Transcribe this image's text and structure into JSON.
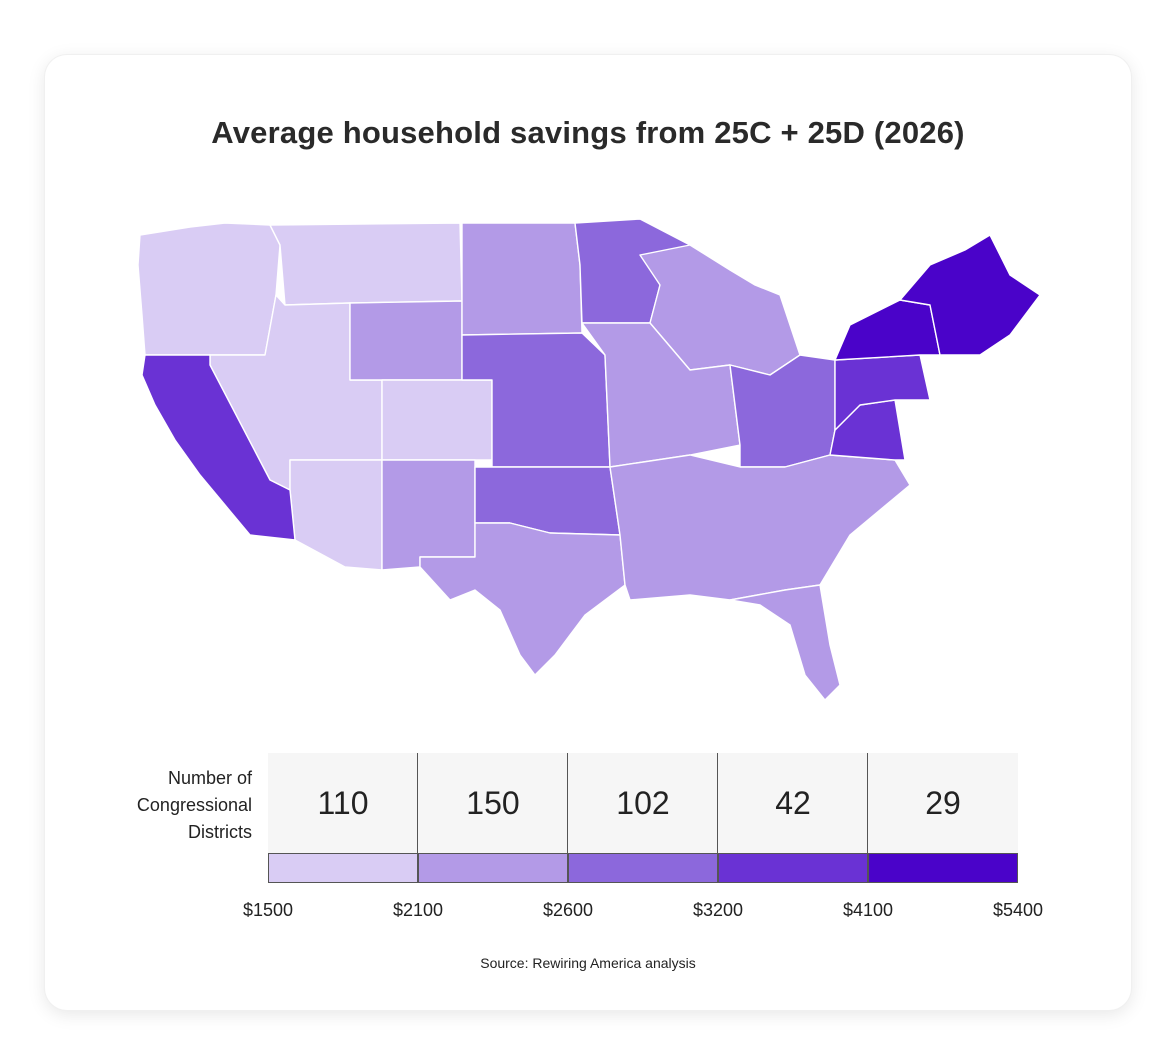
{
  "title": "Average household savings from 25C + 25D (2026)",
  "legend": {
    "label_lines": [
      "Number of",
      "Congressional",
      "Districts"
    ],
    "bins": [
      {
        "count": "110",
        "color": "#d9ccf4"
      },
      {
        "count": "150",
        "color": "#b39ae7"
      },
      {
        "count": "102",
        "color": "#8c68dc"
      },
      {
        "count": "42",
        "color": "#6a32d4"
      },
      {
        "count": "29",
        "color": "#4a03c9"
      }
    ],
    "ticks": [
      "$1500",
      "$2100",
      "$2600",
      "$3200",
      "$4100",
      "$5400"
    ]
  },
  "source": "Source: Rewiring America analysis",
  "map": {
    "regions": [
      {
        "name": "northwest",
        "bin": 0
      },
      {
        "name": "great-basin",
        "bin": 0
      },
      {
        "name": "montana",
        "bin": 0
      },
      {
        "name": "colorado",
        "bin": 0
      },
      {
        "name": "arizona",
        "bin": 0
      },
      {
        "name": "wyoming",
        "bin": 1
      },
      {
        "name": "dakotas",
        "bin": 1
      },
      {
        "name": "new-mexico",
        "bin": 1
      },
      {
        "name": "texas",
        "bin": 1
      },
      {
        "name": "southeast",
        "bin": 1
      },
      {
        "name": "florida",
        "bin": 1
      },
      {
        "name": "wisconsin-michigan",
        "bin": 1
      },
      {
        "name": "iowa-illinois",
        "bin": 1
      },
      {
        "name": "great-plains",
        "bin": 2
      },
      {
        "name": "minnesota",
        "bin": 2
      },
      {
        "name": "oklahoma",
        "bin": 2
      },
      {
        "name": "ohio-valley",
        "bin": 2
      },
      {
        "name": "california",
        "bin": 3
      },
      {
        "name": "virginia",
        "bin": 3
      },
      {
        "name": "pennsylvania",
        "bin": 3
      },
      {
        "name": "new-york",
        "bin": 4
      },
      {
        "name": "new-england",
        "bin": 4
      }
    ]
  }
}
